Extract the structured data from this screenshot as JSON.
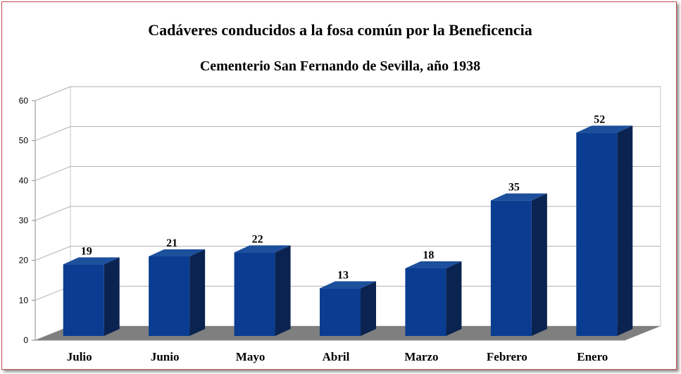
{
  "chart_data": {
    "type": "bar",
    "title": "Cadáveres conducidos a la fosa común por la Beneficencia",
    "subtitle": "Cementerio San Fernando de Sevilla, año 1938",
    "categories": [
      "Julio",
      "Junio",
      "Mayo",
      "Abril",
      "Marzo",
      "Febrero",
      "Enero"
    ],
    "series": [
      {
        "values": [
          19,
          21,
          22,
          13,
          18,
          35,
          52
        ]
      }
    ],
    "ylim": [
      0,
      60
    ],
    "yticks": [
      0,
      10,
      20,
      30,
      40,
      50,
      60
    ],
    "grid": true,
    "legend": "none",
    "style": "3d-column",
    "colors": {
      "bar_front": "#0a3d91",
      "bar_side": "#0a2350",
      "bar_top": "#1c4f9c",
      "floor": "#7f7f7f",
      "grid": "#b0b0b0",
      "frame_border": "#c0504d"
    }
  }
}
